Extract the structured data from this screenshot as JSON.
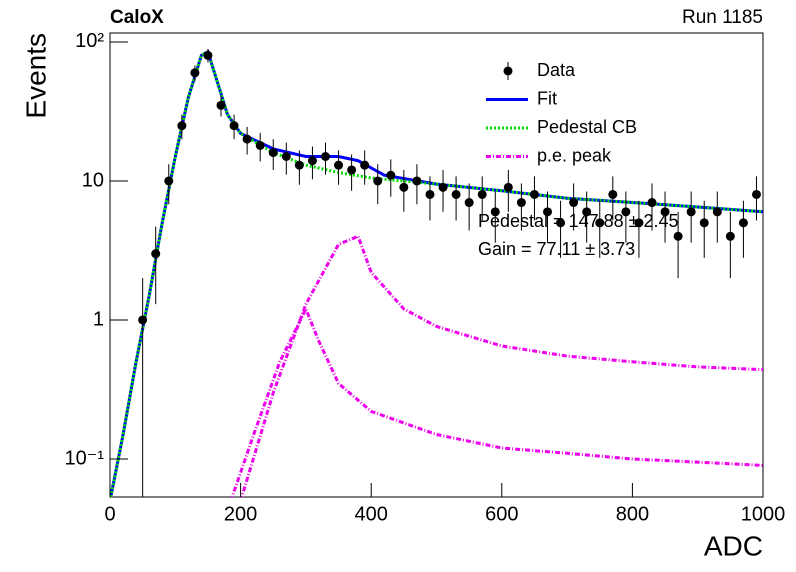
{
  "chart_data": {
    "type": "scatter",
    "title": "CaloX",
    "subtitle": "Run 1185",
    "x_label": "ADC",
    "y_label": "Events",
    "log_y": true,
    "xlim": [
      0,
      1000
    ],
    "ylim": [
      0.0533,
      116
    ],
    "xticks": [
      0,
      200,
      400,
      600,
      800,
      1000
    ],
    "yticks": [
      {
        "value": 0.1,
        "label": "10⁻¹"
      },
      1,
      10,
      {
        "value": 100,
        "label": "10²"
      }
    ],
    "data": {
      "name": "Data",
      "color": "#000000",
      "x": [
        50,
        70,
        90,
        110,
        130,
        150,
        170,
        190,
        210,
        230,
        250,
        270,
        290,
        310,
        330,
        350,
        370,
        390,
        410,
        430,
        450,
        470,
        490,
        510,
        530,
        550,
        570,
        590,
        610,
        630,
        650,
        670,
        690,
        710,
        730,
        750,
        770,
        790,
        810,
        830,
        850,
        870,
        890,
        910,
        930,
        950,
        970,
        990
      ],
      "values": [
        1,
        3,
        10,
        25,
        60,
        80,
        35,
        25,
        20,
        18,
        16,
        15,
        13,
        14,
        15,
        13,
        12,
        13,
        10,
        11,
        9,
        10,
        8,
        9,
        8,
        7,
        8,
        6,
        9,
        7,
        8,
        6,
        5,
        7,
        6,
        5,
        8,
        6,
        5,
        7,
        6,
        4,
        6,
        5,
        6,
        4,
        5,
        8
      ],
      "errors": [
        1,
        1.7,
        3.2,
        5,
        7.7,
        8.9,
        5.9,
        5,
        4.5,
        4.2,
        4,
        3.9,
        3.6,
        3.7,
        3.9,
        3.6,
        3.5,
        3.6,
        3.2,
        3.3,
        3,
        3.2,
        2.8,
        3,
        2.8,
        2.6,
        2.8,
        2.4,
        3,
        2.6,
        2.8,
        2.4,
        2.2,
        2.6,
        2.4,
        2.2,
        2.8,
        2.4,
        2.2,
        2.6,
        2.4,
        2,
        2.4,
        2.2,
        2.4,
        2,
        2.2,
        2.8
      ]
    },
    "curves": [
      {
        "name": "Fit",
        "color": "#0000ff",
        "style": "solid",
        "x": [
          0,
          20,
          40,
          60,
          80,
          100,
          120,
          140,
          150,
          160,
          180,
          200,
          250,
          300,
          350,
          380,
          420,
          500,
          600,
          700,
          800,
          900,
          1000
        ],
        "y": [
          0.05,
          0.15,
          0.5,
          1.5,
          5,
          15,
          40,
          80,
          85,
          60,
          30,
          22,
          17,
          15,
          15,
          14,
          11,
          9.5,
          8.5,
          7.5,
          7,
          6.5,
          6
        ]
      },
      {
        "name": "Pedestal CB",
        "color": "#00dd00",
        "style": "dotted",
        "x": [
          0,
          20,
          40,
          60,
          80,
          100,
          120,
          140,
          150,
          160,
          180,
          200,
          250,
          300,
          350,
          400,
          500,
          600,
          700,
          800,
          900,
          1000
        ],
        "y": [
          0.05,
          0.15,
          0.5,
          1.5,
          5,
          15,
          40,
          80,
          85,
          60,
          30,
          22,
          16,
          13,
          11.5,
          10.5,
          9.5,
          8.5,
          7.5,
          7,
          6.5,
          6
        ]
      },
      {
        "name": "p.e. peak",
        "color": "#ee00ee",
        "style": "dashed",
        "x": [
          200,
          250,
          300,
          350,
          380,
          400,
          450,
          500,
          600,
          700,
          800,
          900,
          1000
        ],
        "y": [
          0.05,
          0.3,
          1.3,
          3.5,
          4,
          2.2,
          1.2,
          0.9,
          0.65,
          0.55,
          0.5,
          0.46,
          0.44
        ]
      },
      {
        "color": "#ee00ee",
        "style": "dashed",
        "x": [
          185,
          220,
          260,
          300,
          320,
          350,
          400,
          500,
          600,
          700,
          800,
          900,
          1000
        ],
        "y": [
          0.05,
          0.15,
          0.5,
          1.2,
          0.7,
          0.35,
          0.22,
          0.15,
          0.12,
          0.11,
          0.1,
          0.095,
          0.09
        ]
      }
    ],
    "annotations": [
      "Pedestal = 147.88 ± 2.45",
      "Gain = 77.11 ± 3.73"
    ]
  }
}
